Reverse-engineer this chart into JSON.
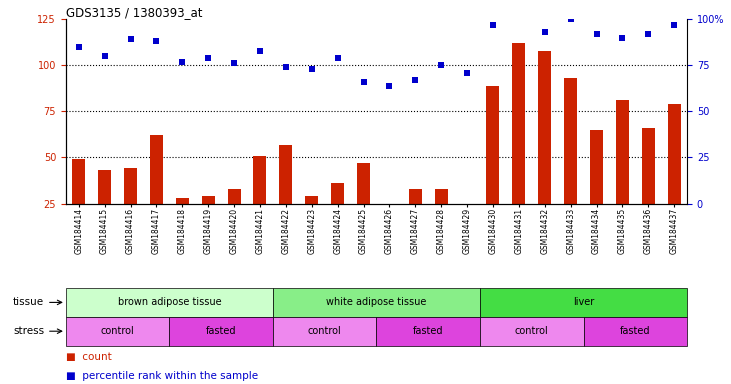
{
  "title": "GDS3135 / 1380393_at",
  "samples": [
    "GSM184414",
    "GSM184415",
    "GSM184416",
    "GSM184417",
    "GSM184418",
    "GSM184419",
    "GSM184420",
    "GSM184421",
    "GSM184422",
    "GSM184423",
    "GSM184424",
    "GSM184425",
    "GSM184426",
    "GSM184427",
    "GSM184428",
    "GSM184429",
    "GSM184430",
    "GSM184431",
    "GSM184432",
    "GSM184433",
    "GSM184434",
    "GSM184435",
    "GSM184436",
    "GSM184437"
  ],
  "counts": [
    49,
    43,
    44,
    62,
    28,
    29,
    33,
    51,
    57,
    29,
    36,
    47,
    24,
    33,
    33,
    22,
    89,
    112,
    108,
    93,
    65,
    81,
    66,
    79
  ],
  "percentiles": [
    85,
    80,
    89,
    88,
    77,
    79,
    76,
    83,
    74,
    73,
    79,
    66,
    64,
    67,
    75,
    71,
    97,
    102,
    93,
    100,
    92,
    90,
    92,
    97
  ],
  "bar_color": "#cc2200",
  "dot_color": "#0000cc",
  "ylim_left": [
    25,
    125
  ],
  "ylim_right": [
    0,
    100
  ],
  "yticks_left": [
    25,
    50,
    75,
    100,
    125
  ],
  "yticks_right": [
    0,
    25,
    50,
    75,
    100
  ],
  "ytick_labels_right": [
    "0",
    "25",
    "50",
    "75",
    "100%"
  ],
  "hlines": [
    50,
    75,
    100
  ],
  "tissue_groups": [
    {
      "label": "brown adipose tissue",
      "start": 0,
      "end": 8,
      "color": "#ccffcc"
    },
    {
      "label": "white adipose tissue",
      "start": 8,
      "end": 16,
      "color": "#88ee88"
    },
    {
      "label": "liver",
      "start": 16,
      "end": 24,
      "color": "#44dd44"
    }
  ],
  "stress_groups": [
    {
      "label": "control",
      "start": 0,
      "end": 4,
      "color": "#ee88ee"
    },
    {
      "label": "fasted",
      "start": 4,
      "end": 8,
      "color": "#dd44dd"
    },
    {
      "label": "control",
      "start": 8,
      "end": 12,
      "color": "#ee88ee"
    },
    {
      "label": "fasted",
      "start": 12,
      "end": 16,
      "color": "#dd44dd"
    },
    {
      "label": "control",
      "start": 16,
      "end": 20,
      "color": "#ee88ee"
    },
    {
      "label": "fasted",
      "start": 20,
      "end": 24,
      "color": "#dd44dd"
    }
  ],
  "label_tissue": "tissue",
  "label_stress": "stress",
  "legend_count": "count",
  "legend_percentile": "percentile rank within the sample"
}
